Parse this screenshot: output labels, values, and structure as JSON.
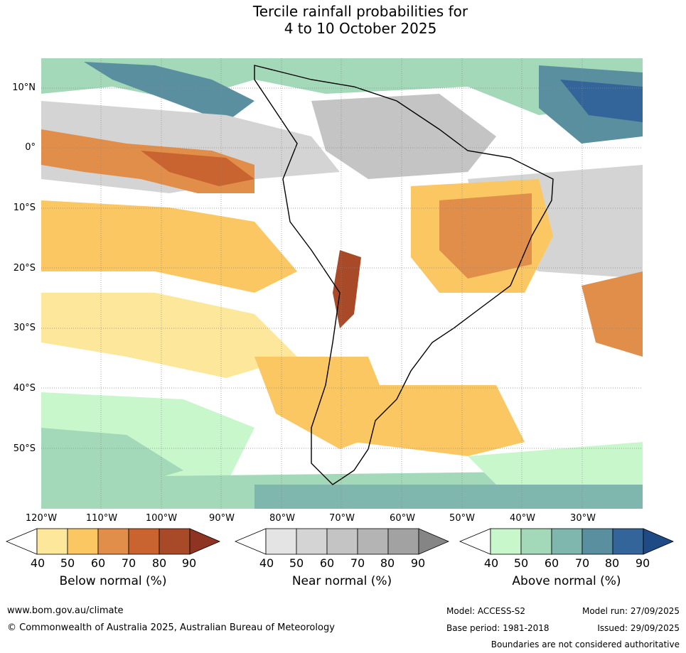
{
  "title": {
    "line1": "Tercile rainfall probabilities for",
    "line2": "4 to 10 October 2025"
  },
  "latitude_labels": [
    "10°N",
    "0°",
    "10°S",
    "20°S",
    "30°S",
    "40°S",
    "50°S"
  ],
  "longitude_labels": [
    "120°W",
    "110°W",
    "100°W",
    "90°W",
    "80°W",
    "70°W",
    "60°W",
    "50°W",
    "40°W",
    "30°W"
  ],
  "colorbars": [
    {
      "title": "Below normal (%)",
      "ticks": [
        "40",
        "50",
        "60",
        "70",
        "80",
        "90"
      ],
      "colors": [
        "#ffffff",
        "#fde79a",
        "#fbc763",
        "#e08e4a",
        "#c96431",
        "#a84a28",
        "#8f3322"
      ]
    },
    {
      "title": "Near normal (%)",
      "ticks": [
        "40",
        "50",
        "60",
        "70",
        "80",
        "90"
      ],
      "colors": [
        "#ffffff",
        "#e4e4e4",
        "#d4d4d4",
        "#c4c4c4",
        "#b4b4b4",
        "#a2a2a2",
        "#858585"
      ]
    },
    {
      "title": "Above normal (%)",
      "ticks": [
        "40",
        "50",
        "60",
        "70",
        "80",
        "90"
      ],
      "colors": [
        "#ffffff",
        "#c8f7cc",
        "#a3d8b8",
        "#7fb6ad",
        "#5a8fa0",
        "#34659a",
        "#1e4a86"
      ]
    }
  ],
  "footer": {
    "website": "www.bom.gov.au/climate",
    "copyright": "© Commonwealth of Australia 2025, Australian Bureau of Meteorology",
    "model": "Model: ACCESS-S2",
    "base_period": "Base period: 1981-2018",
    "model_run": "Model run: 27/09/2025",
    "issued": "Issued: 29/09/2025",
    "boundaries_note": "Boundaries are not considered authoritative"
  },
  "colors": {
    "land_outline": "#000000",
    "border": "#808080",
    "gridline": "#888888"
  }
}
